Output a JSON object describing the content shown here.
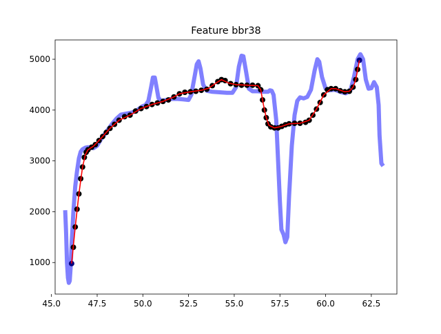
{
  "chart_data": {
    "type": "line",
    "title": "Feature bbr38",
    "xlabel": "",
    "ylabel": "",
    "xlim": [
      45.2,
      63.9
    ],
    "ylim": [
      380,
      5380
    ],
    "x_ticks": [
      45.0,
      47.5,
      50.0,
      52.5,
      55.0,
      57.5,
      60.0,
      62.5
    ],
    "x_tick_labels": [
      "45.0",
      "47.5",
      "50.0",
      "52.5",
      "55.0",
      "57.5",
      "60.0",
      "62.5"
    ],
    "y_ticks": [
      1000,
      2000,
      3000,
      4000,
      5000
    ],
    "y_tick_labels": [
      "1000",
      "2000",
      "3000",
      "4000",
      "5000"
    ],
    "grid": false,
    "legend": "none",
    "colors": {
      "raw": "#8080ff",
      "points": "#000000",
      "endpoints": "#000080",
      "fit": "#ff0000",
      "axis": "#000000"
    },
    "series": [
      {
        "role": "raw",
        "style": "thick-line",
        "points": [
          [
            45.75,
            2030
          ],
          [
            45.8,
            1600
          ],
          [
            45.85,
            1000
          ],
          [
            45.9,
            700
          ],
          [
            45.95,
            600
          ],
          [
            46.0,
            640
          ],
          [
            46.05,
            900
          ],
          [
            46.1,
            1350
          ],
          [
            46.2,
            2000
          ],
          [
            46.3,
            2500
          ],
          [
            46.4,
            2800
          ],
          [
            46.5,
            3050
          ],
          [
            46.6,
            3180
          ],
          [
            46.7,
            3230
          ],
          [
            46.85,
            3260
          ],
          [
            47.0,
            3270
          ],
          [
            47.15,
            3265
          ],
          [
            47.3,
            3250
          ],
          [
            47.5,
            3300
          ],
          [
            47.7,
            3420
          ],
          [
            47.9,
            3520
          ],
          [
            48.1,
            3620
          ],
          [
            48.3,
            3720
          ],
          [
            48.55,
            3830
          ],
          [
            48.8,
            3910
          ],
          [
            49.1,
            3930
          ],
          [
            49.4,
            3950
          ],
          [
            49.7,
            4000
          ],
          [
            49.95,
            4070
          ],
          [
            50.15,
            4100
          ],
          [
            50.3,
            4180
          ],
          [
            50.45,
            4450
          ],
          [
            50.55,
            4640
          ],
          [
            50.65,
            4640
          ],
          [
            50.75,
            4450
          ],
          [
            50.85,
            4240
          ],
          [
            51.0,
            4180
          ],
          [
            51.3,
            4200
          ],
          [
            51.6,
            4220
          ],
          [
            51.9,
            4220
          ],
          [
            52.2,
            4210
          ],
          [
            52.5,
            4200
          ],
          [
            52.65,
            4300
          ],
          [
            52.8,
            4600
          ],
          [
            52.95,
            4900
          ],
          [
            53.05,
            4960
          ],
          [
            53.15,
            4820
          ],
          [
            53.3,
            4500
          ],
          [
            53.5,
            4380
          ],
          [
            53.8,
            4360
          ],
          [
            54.2,
            4350
          ],
          [
            54.6,
            4340
          ],
          [
            54.9,
            4340
          ],
          [
            55.1,
            4450
          ],
          [
            55.25,
            4850
          ],
          [
            55.4,
            5070
          ],
          [
            55.5,
            5060
          ],
          [
            55.65,
            4750
          ],
          [
            55.8,
            4420
          ],
          [
            56.0,
            4370
          ],
          [
            56.3,
            4370
          ],
          [
            56.6,
            4360
          ],
          [
            56.85,
            4360
          ],
          [
            56.95,
            4390
          ],
          [
            57.05,
            4380
          ],
          [
            57.15,
            4300
          ],
          [
            57.3,
            3800
          ],
          [
            57.4,
            3000
          ],
          [
            57.5,
            2200
          ],
          [
            57.58,
            1650
          ],
          [
            57.7,
            1550
          ],
          [
            57.8,
            1400
          ],
          [
            57.9,
            1500
          ],
          [
            58.0,
            2300
          ],
          [
            58.15,
            3300
          ],
          [
            58.3,
            3900
          ],
          [
            58.45,
            4180
          ],
          [
            58.6,
            4250
          ],
          [
            58.8,
            4230
          ],
          [
            59.0,
            4260
          ],
          [
            59.2,
            4400
          ],
          [
            59.4,
            4780
          ],
          [
            59.55,
            5000
          ],
          [
            59.65,
            4950
          ],
          [
            59.8,
            4650
          ],
          [
            60.0,
            4420
          ],
          [
            60.2,
            4390
          ],
          [
            60.5,
            4400
          ],
          [
            60.8,
            4360
          ],
          [
            61.1,
            4330
          ],
          [
            61.35,
            4380
          ],
          [
            61.55,
            4650
          ],
          [
            61.75,
            5000
          ],
          [
            61.9,
            5100
          ],
          [
            62.05,
            5000
          ],
          [
            62.2,
            4600
          ],
          [
            62.35,
            4420
          ],
          [
            62.5,
            4430
          ],
          [
            62.65,
            4550
          ],
          [
            62.8,
            4450
          ],
          [
            62.9,
            4100
          ],
          [
            62.95,
            3500
          ],
          [
            63.05,
            2950
          ],
          [
            63.15,
            2900
          ]
        ]
      },
      {
        "role": "points",
        "style": "markers",
        "points": [
          [
            46.1,
            980
          ],
          [
            46.2,
            1300
          ],
          [
            46.3,
            1700
          ],
          [
            46.4,
            2050
          ],
          [
            46.5,
            2350
          ],
          [
            46.6,
            2650
          ],
          [
            46.7,
            2880
          ],
          [
            46.8,
            3070
          ],
          [
            46.9,
            3170
          ],
          [
            47.0,
            3220
          ],
          [
            47.2,
            3270
          ],
          [
            47.4,
            3320
          ],
          [
            47.6,
            3400
          ],
          [
            47.8,
            3480
          ],
          [
            48.0,
            3560
          ],
          [
            48.2,
            3640
          ],
          [
            48.45,
            3720
          ],
          [
            48.7,
            3800
          ],
          [
            49.0,
            3870
          ],
          [
            49.3,
            3900
          ],
          [
            49.6,
            3980
          ],
          [
            49.9,
            4030
          ],
          [
            50.2,
            4070
          ],
          [
            50.5,
            4110
          ],
          [
            50.8,
            4140
          ],
          [
            51.1,
            4170
          ],
          [
            51.4,
            4200
          ],
          [
            51.7,
            4260
          ],
          [
            52.0,
            4320
          ],
          [
            52.3,
            4350
          ],
          [
            52.6,
            4360
          ],
          [
            52.9,
            4370
          ],
          [
            53.2,
            4390
          ],
          [
            53.5,
            4410
          ],
          [
            53.8,
            4480
          ],
          [
            54.1,
            4560
          ],
          [
            54.3,
            4600
          ],
          [
            54.5,
            4580
          ],
          [
            54.8,
            4520
          ],
          [
            55.1,
            4500
          ],
          [
            55.4,
            4490
          ],
          [
            55.7,
            4490
          ],
          [
            56.0,
            4490
          ],
          [
            56.3,
            4480
          ],
          [
            56.45,
            4400
          ],
          [
            56.55,
            4200
          ],
          [
            56.65,
            4000
          ],
          [
            56.75,
            3850
          ],
          [
            56.85,
            3730
          ],
          [
            57.0,
            3670
          ],
          [
            57.2,
            3650
          ],
          [
            57.4,
            3650
          ],
          [
            57.6,
            3680
          ],
          [
            57.8,
            3710
          ],
          [
            58.0,
            3730
          ],
          [
            58.3,
            3740
          ],
          [
            58.6,
            3740
          ],
          [
            58.9,
            3760
          ],
          [
            59.1,
            3800
          ],
          [
            59.3,
            3900
          ],
          [
            59.5,
            4020
          ],
          [
            59.7,
            4150
          ],
          [
            59.9,
            4300
          ],
          [
            60.1,
            4400
          ],
          [
            60.3,
            4420
          ],
          [
            60.55,
            4420
          ],
          [
            60.8,
            4380
          ],
          [
            61.05,
            4360
          ],
          [
            61.3,
            4370
          ],
          [
            61.5,
            4450
          ],
          [
            61.65,
            4600
          ],
          [
            61.75,
            4800
          ],
          [
            61.85,
            4980
          ]
        ]
      },
      {
        "role": "fit",
        "style": "line",
        "points": [
          [
            46.1,
            980
          ],
          [
            46.3,
            1700
          ],
          [
            46.5,
            2350
          ],
          [
            46.7,
            2880
          ],
          [
            46.85,
            3120
          ],
          [
            47.0,
            3220
          ],
          [
            47.3,
            3290
          ],
          [
            47.7,
            3440
          ],
          [
            48.2,
            3640
          ],
          [
            48.7,
            3800
          ],
          [
            49.3,
            3900
          ],
          [
            49.9,
            4030
          ],
          [
            50.5,
            4110
          ],
          [
            51.1,
            4170
          ],
          [
            51.7,
            4260
          ],
          [
            52.0,
            4320
          ],
          [
            52.6,
            4360
          ],
          [
            53.2,
            4390
          ],
          [
            53.6,
            4430
          ],
          [
            54.0,
            4530
          ],
          [
            54.3,
            4600
          ],
          [
            54.7,
            4530
          ],
          [
            55.1,
            4500
          ],
          [
            55.7,
            4490
          ],
          [
            56.3,
            4480
          ],
          [
            56.45,
            4400
          ],
          [
            56.6,
            4100
          ],
          [
            56.75,
            3850
          ],
          [
            56.9,
            3700
          ],
          [
            57.2,
            3650
          ],
          [
            57.6,
            3680
          ],
          [
            58.0,
            3730
          ],
          [
            58.6,
            3740
          ],
          [
            59.1,
            3800
          ],
          [
            59.5,
            4020
          ],
          [
            59.9,
            4300
          ],
          [
            60.3,
            4420
          ],
          [
            60.55,
            4420
          ],
          [
            61.05,
            4360
          ],
          [
            61.3,
            4370
          ],
          [
            61.5,
            4450
          ],
          [
            61.65,
            4600
          ],
          [
            61.85,
            4980
          ]
        ]
      }
    ]
  }
}
